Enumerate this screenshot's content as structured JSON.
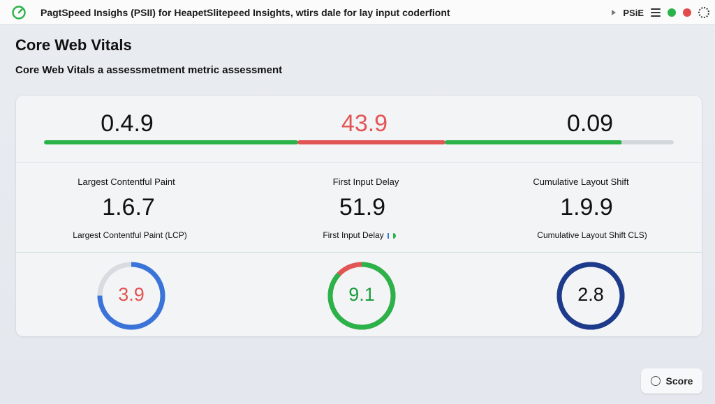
{
  "topbar": {
    "title": "PagtSpeed Insighs (PSII) for HeapetSlitepeed Insights, wtirs dale for lay input coderfiont",
    "right_label": "PSiE",
    "dot_colors": [
      "#2bb34a",
      "#e24c4c"
    ]
  },
  "page": {
    "title": "Core Web Vitals",
    "subtitle": "Core Web Vitals a assessmetment metric assessment"
  },
  "summary": {
    "values": [
      "0.4.9",
      "43.9",
      "0.09"
    ],
    "bar_segments": [
      {
        "color": "#2bb34a"
      },
      {
        "color": "#e25555"
      },
      {
        "color": "#2bb34a"
      },
      {
        "color": "#d4d7dc"
      }
    ]
  },
  "metrics": [
    {
      "name": "Largest Contentful Paint",
      "value": "1.6.7",
      "sub": "Largest Contentful Paint (LCP)"
    },
    {
      "name": "First Input Delay",
      "value": "51.9",
      "sub": "First Input Delay"
    },
    {
      "name": "Cumulative Layout Shift",
      "value": "1.9.9",
      "sub": "Cumulative Layout Shift CLS)"
    }
  ],
  "gauges": [
    {
      "value": "3.9",
      "text_color": "#e25555",
      "progress": 0.75,
      "arc_color": "#3b74d9",
      "track_color": "#d8dbe0"
    },
    {
      "value": "9.1",
      "text_color": "#1f9c3e",
      "progress": 0.87,
      "arc_color": "#2bb34a",
      "track_color": "#e25555"
    },
    {
      "value": "2.8",
      "text_color": "#111111",
      "progress": 1.0,
      "arc_color": "#1e3a8a",
      "track_color": "#3b74d9"
    }
  ],
  "score_button": {
    "label": "Score"
  }
}
